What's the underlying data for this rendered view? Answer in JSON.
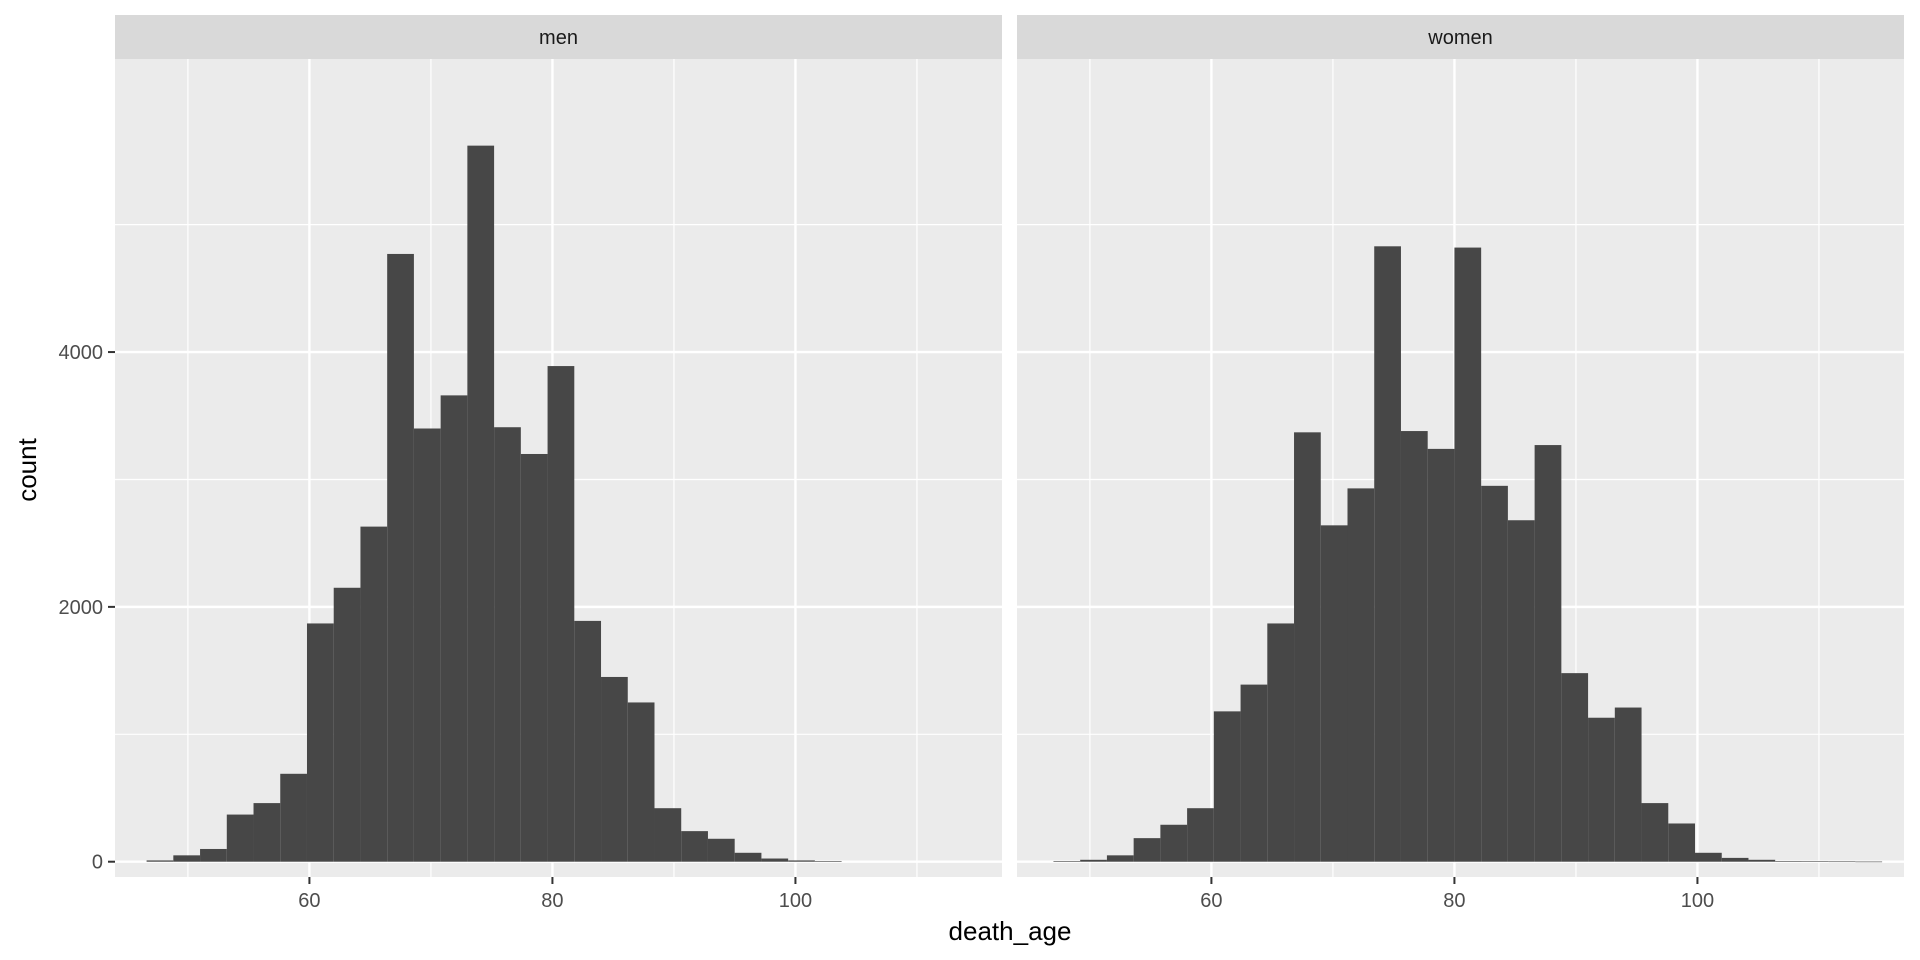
{
  "chart_data": {
    "type": "bar",
    "subtype": "faceted-histogram",
    "xlabel": "death_age",
    "ylabel": "count",
    "xlim": [
      44,
      117
    ],
    "ylim": [
      -120,
      6300
    ],
    "x_ticks": [
      60,
      80,
      100
    ],
    "y_ticks": [
      0,
      2000,
      4000
    ],
    "y_tick_labels": [
      "0",
      "2000",
      "4000"
    ],
    "bin_width": 2.2,
    "grid": true,
    "colors": {
      "bar": "#474747",
      "panel": "#ebebeb",
      "strip": "#d9d9d9",
      "grid": "#ffffff"
    },
    "facets": [
      {
        "label": "men",
        "bins": [
          {
            "x0": 46.6,
            "count": 10
          },
          {
            "x0": 48.8,
            "count": 50
          },
          {
            "x0": 51.0,
            "count": 100
          },
          {
            "x0": 53.2,
            "count": 370
          },
          {
            "x0": 55.4,
            "count": 460
          },
          {
            "x0": 57.6,
            "count": 690
          },
          {
            "x0": 59.8,
            "count": 1870
          },
          {
            "x0": 62.0,
            "count": 2150
          },
          {
            "x0": 64.2,
            "count": 2630
          },
          {
            "x0": 66.4,
            "count": 4770
          },
          {
            "x0": 68.6,
            "count": 3400
          },
          {
            "x0": 70.8,
            "count": 3660
          },
          {
            "x0": 73.0,
            "count": 5620
          },
          {
            "x0": 75.2,
            "count": 3410
          },
          {
            "x0": 77.4,
            "count": 3200
          },
          {
            "x0": 79.6,
            "count": 3890
          },
          {
            "x0": 81.8,
            "count": 1890
          },
          {
            "x0": 84.0,
            "count": 1450
          },
          {
            "x0": 86.2,
            "count": 1250
          },
          {
            "x0": 88.4,
            "count": 420
          },
          {
            "x0": 90.6,
            "count": 240
          },
          {
            "x0": 92.8,
            "count": 180
          },
          {
            "x0": 95.0,
            "count": 70
          },
          {
            "x0": 97.2,
            "count": 25
          },
          {
            "x0": 99.4,
            "count": 10
          },
          {
            "x0": 101.6,
            "count": 5
          }
        ]
      },
      {
        "label": "women",
        "bins": [
          {
            "x0": 47.0,
            "count": 5
          },
          {
            "x0": 49.2,
            "count": 15
          },
          {
            "x0": 51.4,
            "count": 50
          },
          {
            "x0": 53.6,
            "count": 185
          },
          {
            "x0": 55.8,
            "count": 290
          },
          {
            "x0": 58.0,
            "count": 420
          },
          {
            "x0": 60.2,
            "count": 1180
          },
          {
            "x0": 62.4,
            "count": 1390
          },
          {
            "x0": 64.6,
            "count": 1870
          },
          {
            "x0": 66.8,
            "count": 3370
          },
          {
            "x0": 69.0,
            "count": 2640
          },
          {
            "x0": 71.2,
            "count": 2930
          },
          {
            "x0": 73.4,
            "count": 4830
          },
          {
            "x0": 75.6,
            "count": 3380
          },
          {
            "x0": 77.8,
            "count": 3240
          },
          {
            "x0": 80.0,
            "count": 4820
          },
          {
            "x0": 82.2,
            "count": 2950
          },
          {
            "x0": 84.4,
            "count": 2680
          },
          {
            "x0": 86.6,
            "count": 3270
          },
          {
            "x0": 88.8,
            "count": 1480
          },
          {
            "x0": 91.0,
            "count": 1130
          },
          {
            "x0": 93.2,
            "count": 1210
          },
          {
            "x0": 95.4,
            "count": 460
          },
          {
            "x0": 97.6,
            "count": 300
          },
          {
            "x0": 99.8,
            "count": 70
          },
          {
            "x0": 102.0,
            "count": 30
          },
          {
            "x0": 104.2,
            "count": 15
          },
          {
            "x0": 106.4,
            "count": 5
          },
          {
            "x0": 108.6,
            "count": 3
          },
          {
            "x0": 110.8,
            "count": 2
          },
          {
            "x0": 113.0,
            "count": 1
          }
        ]
      }
    ]
  }
}
